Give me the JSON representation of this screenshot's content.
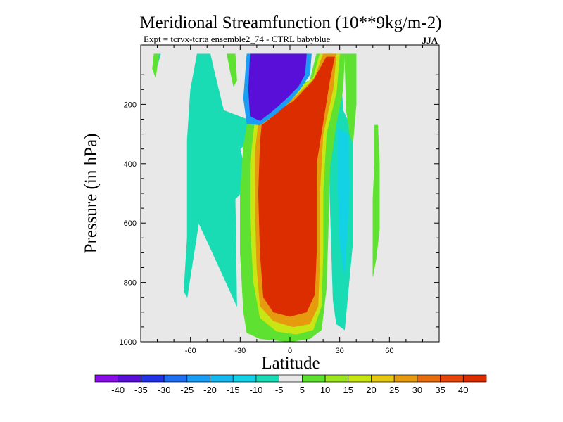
{
  "chart_data": {
    "type": "contour",
    "title": "Meridional Streamfunction (10**9kg/m-2)",
    "subtitle": "Expt = tcrvx-tcrta  ensemble2_74 - CTRL babyblue",
    "season": "JJA",
    "xlabel": "Latitude",
    "ylabel": "Pressure (in hPa)",
    "xlim": [
      -90,
      90
    ],
    "ylim": [
      0,
      1000
    ],
    "y_reversed": true,
    "x_ticks": [
      -60,
      -30,
      0,
      30,
      60
    ],
    "x_tick_labels": [
      "-60",
      "-30",
      "0",
      "30",
      "60"
    ],
    "y_ticks": [
      200,
      400,
      600,
      800,
      1000
    ],
    "y_tick_labels": [
      "200",
      "400",
      "600",
      "800",
      "1000"
    ],
    "background_color": "#e8e8e8",
    "colorbar": {
      "levels": [
        -40,
        -35,
        -30,
        -25,
        -20,
        -15,
        -10,
        -5,
        5,
        10,
        15,
        20,
        25,
        30,
        35,
        40
      ],
      "labels": [
        "-40",
        "-35",
        "-30",
        "-25",
        "-20",
        "-15",
        "-10",
        "-5",
        "5",
        "10",
        "15",
        "20",
        "25",
        "30",
        "35",
        "40"
      ],
      "colors": [
        "#8a0fe6",
        "#5a0fd9",
        "#2332e6",
        "#1f6ff0",
        "#1a9ef5",
        "#16b9f0",
        "#14d2e6",
        "#1adcb4",
        "#e8e8e8",
        "#5fe132",
        "#9be61e",
        "#c8e614",
        "#e6c814",
        "#e69b0f",
        "#e66e0f",
        "#e6460a",
        "#dc2d00"
      ]
    },
    "regions": [
      {
        "name": "cyan-band-southern",
        "value": -7.5,
        "points": [
          [
            -56,
            30
          ],
          [
            -48,
            30
          ],
          [
            -46,
            80
          ],
          [
            -40,
            220
          ],
          [
            -26,
            250
          ],
          [
            -18,
            230
          ],
          [
            -22,
            310
          ],
          [
            -30,
            350
          ],
          [
            -25,
            470
          ],
          [
            -33,
            520
          ],
          [
            -32,
            880
          ],
          [
            -50,
            660
          ],
          [
            -55,
            600
          ],
          [
            -62,
            850
          ],
          [
            -64,
            830
          ],
          [
            -62,
            650
          ],
          [
            -62,
            320
          ],
          [
            -60,
            150
          ]
        ]
      },
      {
        "name": "cyan-band-northern",
        "value": -7.5,
        "points": [
          [
            26,
            40
          ],
          [
            30,
            40
          ],
          [
            32,
            220
          ],
          [
            38,
            290
          ],
          [
            38,
            590
          ],
          [
            38,
            660
          ],
          [
            33,
            960
          ],
          [
            28,
            940
          ],
          [
            26,
            860
          ],
          [
            24,
            500
          ],
          [
            24,
            300
          ],
          [
            23,
            120
          ]
        ]
      },
      {
        "name": "cyan-deep-northern",
        "value": -12.5,
        "points": [
          [
            29,
            280
          ],
          [
            35,
            300
          ],
          [
            36,
            480
          ],
          [
            33,
            780
          ],
          [
            30,
            660
          ],
          [
            29,
            480
          ]
        ]
      },
      {
        "name": "cyan-wisp-south",
        "value": -7.5,
        "points": [
          [
            -80,
            30
          ],
          [
            -78,
            30
          ],
          [
            -80,
            70
          ],
          [
            -81,
            60
          ]
        ]
      },
      {
        "name": "green-south-tip",
        "value": 7.5,
        "points": [
          [
            -82,
            30
          ],
          [
            -79,
            30
          ],
          [
            -81,
            110
          ],
          [
            -83,
            80
          ]
        ]
      },
      {
        "name": "green-north-vertical",
        "value": 7.5,
        "points": [
          [
            51,
            270
          ],
          [
            53,
            270
          ],
          [
            54,
            400
          ],
          [
            54,
            620
          ],
          [
            52,
            720
          ],
          [
            50,
            780
          ],
          [
            50,
            520
          ],
          [
            51,
            400
          ]
        ]
      },
      {
        "name": "green-outer-south-tip",
        "value": 7.5,
        "points": [
          [
            -38,
            30
          ],
          [
            -33,
            30
          ],
          [
            -32,
            120
          ],
          [
            -34,
            140
          ],
          [
            -36,
            90
          ]
        ]
      },
      {
        "name": "green-north-strip",
        "value": 7.5,
        "points": [
          [
            33,
            30
          ],
          [
            40,
            30
          ],
          [
            40,
            200
          ],
          [
            38,
            330
          ],
          [
            36,
            300
          ],
          [
            34,
            220
          ]
        ]
      },
      {
        "name": "cell-green",
        "value": 7.5,
        "points": [
          [
            -25,
            240
          ],
          [
            -18,
            210
          ],
          [
            -12,
            180
          ],
          [
            0,
            140
          ],
          [
            12,
            120
          ],
          [
            16,
            30
          ],
          [
            33,
            30
          ],
          [
            32,
            150
          ],
          [
            28,
            260
          ],
          [
            24,
            420
          ],
          [
            23,
            640
          ],
          [
            22,
            820
          ],
          [
            19,
            960
          ],
          [
            12,
            990
          ],
          [
            0,
            1000
          ],
          [
            -18,
            990
          ],
          [
            -26,
            970
          ],
          [
            -28,
            900
          ],
          [
            -30,
            700
          ],
          [
            -30,
            500
          ],
          [
            -28,
            340
          ]
        ]
      },
      {
        "name": "cell-yellow",
        "value": 17.5,
        "points": [
          [
            -21,
            250
          ],
          [
            -14,
            220
          ],
          [
            -6,
            190
          ],
          [
            2,
            160
          ],
          [
            14,
            110
          ],
          [
            18,
            30
          ],
          [
            30,
            30
          ],
          [
            28,
            160
          ],
          [
            22,
            300
          ],
          [
            20,
            500
          ],
          [
            20,
            700
          ],
          [
            19,
            880
          ],
          [
            14,
            960
          ],
          [
            4,
            975
          ],
          [
            -8,
            965
          ],
          [
            -18,
            920
          ],
          [
            -22,
            800
          ],
          [
            -24,
            600
          ],
          [
            -24,
            400
          ]
        ]
      },
      {
        "name": "cell-orange",
        "value": 27.5,
        "points": [
          [
            -19,
            260
          ],
          [
            -12,
            230
          ],
          [
            -4,
            200
          ],
          [
            4,
            170
          ],
          [
            15,
            110
          ],
          [
            20,
            30
          ],
          [
            28,
            30
          ],
          [
            26,
            150
          ],
          [
            20,
            300
          ],
          [
            18,
            500
          ],
          [
            18,
            720
          ],
          [
            17,
            880
          ],
          [
            12,
            940
          ],
          [
            2,
            950
          ],
          [
            -10,
            930
          ],
          [
            -18,
            880
          ],
          [
            -20,
            750
          ],
          [
            -21,
            550
          ],
          [
            -21,
            360
          ]
        ]
      },
      {
        "name": "cell-red",
        "value": 40,
        "points": [
          [
            -17,
            270
          ],
          [
            -10,
            240
          ],
          [
            -4,
            210
          ],
          [
            2,
            190
          ],
          [
            14,
            120
          ],
          [
            22,
            40
          ],
          [
            27,
            40
          ],
          [
            24,
            120
          ],
          [
            20,
            260
          ],
          [
            16,
            400
          ],
          [
            16,
            700
          ],
          [
            15,
            840
          ],
          [
            10,
            900
          ],
          [
            0,
            915
          ],
          [
            -10,
            900
          ],
          [
            -16,
            850
          ],
          [
            -18,
            700
          ],
          [
            -19,
            500
          ],
          [
            -18,
            330
          ]
        ]
      },
      {
        "name": "neg-cell-blue",
        "value": -22.5,
        "points": [
          [
            -26,
            30
          ],
          [
            13,
            30
          ],
          [
            12,
            100
          ],
          [
            6,
            150
          ],
          [
            0,
            190
          ],
          [
            -8,
            230
          ],
          [
            -18,
            270
          ],
          [
            -26,
            265
          ],
          [
            -28,
            180
          ]
        ]
      },
      {
        "name": "neg-cell-purple",
        "value": -40,
        "points": [
          [
            -24,
            30
          ],
          [
            10,
            30
          ],
          [
            9,
            100
          ],
          [
            5,
            140
          ],
          [
            -2,
            180
          ],
          [
            -10,
            220
          ],
          [
            -18,
            255
          ],
          [
            -24,
            240
          ],
          [
            -25,
            150
          ]
        ]
      }
    ]
  }
}
